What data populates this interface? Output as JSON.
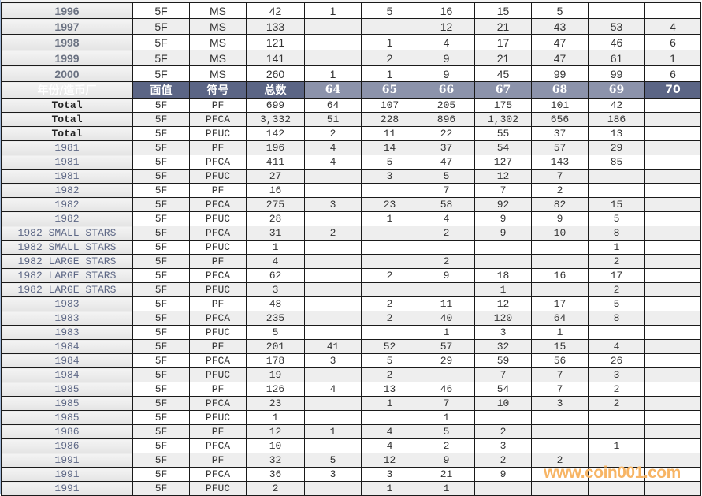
{
  "header": [
    "年份/造币厂",
    "面值",
    "符号",
    "总数",
    "64",
    "65",
    "66",
    "67",
    "68",
    "69",
    "70"
  ],
  "ms_rows": [
    [
      "1996",
      "5F",
      "MS",
      "42",
      "1",
      "5",
      "16",
      "15",
      "5",
      "",
      ""
    ],
    [
      "1997",
      "5F",
      "MS",
      "133",
      "",
      "",
      "12",
      "21",
      "43",
      "53",
      "4"
    ],
    [
      "1998",
      "5F",
      "MS",
      "121",
      "",
      "1",
      "4",
      "17",
      "47",
      "46",
      "6"
    ],
    [
      "1999",
      "5F",
      "MS",
      "141",
      "",
      "2",
      "9",
      "21",
      "47",
      "61",
      "1"
    ],
    [
      "2000",
      "5F",
      "MS",
      "260",
      "1",
      "1",
      "9",
      "45",
      "99",
      "99",
      "6"
    ]
  ],
  "pf_rows": [
    [
      "Total",
      "5F",
      "PF",
      "699",
      "64",
      "107",
      "205",
      "175",
      "101",
      "42",
      ""
    ],
    [
      "Total",
      "5F",
      "PFCA",
      "3,332",
      "51",
      "228",
      "896",
      "1,302",
      "656",
      "186",
      ""
    ],
    [
      "Total",
      "5F",
      "PFUC",
      "142",
      "2",
      "11",
      "22",
      "55",
      "37",
      "13",
      ""
    ],
    [
      "1981",
      "5F",
      "PF",
      "196",
      "4",
      "14",
      "37",
      "54",
      "57",
      "29",
      ""
    ],
    [
      "1981",
      "5F",
      "PFCA",
      "411",
      "4",
      "5",
      "47",
      "127",
      "143",
      "85",
      ""
    ],
    [
      "1981",
      "5F",
      "PFUC",
      "27",
      "",
      "3",
      "5",
      "12",
      "7",
      "",
      ""
    ],
    [
      "1982",
      "5F",
      "PF",
      "16",
      "",
      "",
      "7",
      "7",
      "2",
      "",
      ""
    ],
    [
      "1982",
      "5F",
      "PFCA",
      "275",
      "3",
      "23",
      "58",
      "92",
      "82",
      "15",
      ""
    ],
    [
      "1982",
      "5F",
      "PFUC",
      "28",
      "",
      "1",
      "4",
      "9",
      "9",
      "5",
      ""
    ],
    [
      "1982 SMALL STARS",
      "5F",
      "PFCA",
      "31",
      "2",
      "",
      "2",
      "9",
      "10",
      "8",
      ""
    ],
    [
      "1982 SMALL STARS",
      "5F",
      "PFUC",
      "1",
      "",
      "",
      "",
      "",
      "",
      "1",
      ""
    ],
    [
      "1982 LARGE STARS",
      "5F",
      "PF",
      "4",
      "",
      "",
      "2",
      "",
      "",
      "2",
      ""
    ],
    [
      "1982 LARGE STARS",
      "5F",
      "PFCA",
      "62",
      "",
      "2",
      "9",
      "18",
      "16",
      "17",
      ""
    ],
    [
      "1982 LARGE STARS",
      "5F",
      "PFUC",
      "3",
      "",
      "",
      "",
      "1",
      "",
      "2",
      ""
    ],
    [
      "1983",
      "5F",
      "PF",
      "48",
      "",
      "2",
      "11",
      "12",
      "17",
      "5",
      ""
    ],
    [
      "1983",
      "5F",
      "PFCA",
      "235",
      "",
      "2",
      "40",
      "120",
      "64",
      "8",
      ""
    ],
    [
      "1983",
      "5F",
      "PFUC",
      "5",
      "",
      "",
      "1",
      "3",
      "1",
      "",
      ""
    ],
    [
      "1984",
      "5F",
      "PF",
      "201",
      "41",
      "52",
      "57",
      "32",
      "15",
      "4",
      ""
    ],
    [
      "1984",
      "5F",
      "PFCA",
      "178",
      "3",
      "5",
      "29",
      "59",
      "56",
      "26",
      ""
    ],
    [
      "1984",
      "5F",
      "PFUC",
      "19",
      "",
      "2",
      "",
      "7",
      "7",
      "3",
      ""
    ],
    [
      "1985",
      "5F",
      "PF",
      "126",
      "4",
      "13",
      "46",
      "54",
      "7",
      "2",
      ""
    ],
    [
      "1985",
      "5F",
      "PFCA",
      "23",
      "",
      "1",
      "7",
      "10",
      "3",
      "2",
      ""
    ],
    [
      "1985",
      "5F",
      "PFUC",
      "1",
      "",
      "",
      "1",
      "",
      "",
      "",
      ""
    ],
    [
      "1986",
      "5F",
      "PF",
      "12",
      "1",
      "4",
      "5",
      "2",
      "",
      "",
      ""
    ],
    [
      "1986",
      "5F",
      "PFCA",
      "10",
      "",
      "4",
      "2",
      "3",
      "",
      "1",
      ""
    ],
    [
      "1991",
      "5F",
      "PF",
      "32",
      "5",
      "12",
      "9",
      "2",
      "2",
      "",
      ""
    ],
    [
      "1991",
      "5F",
      "PFCA",
      "36",
      "3",
      "3",
      "21",
      "9",
      "",
      "",
      ""
    ],
    [
      "1991",
      "5F",
      "PFUC",
      "2",
      "",
      "1",
      "1",
      "",
      "",
      "",
      ""
    ]
  ],
  "watermark": "www.coin001.com"
}
